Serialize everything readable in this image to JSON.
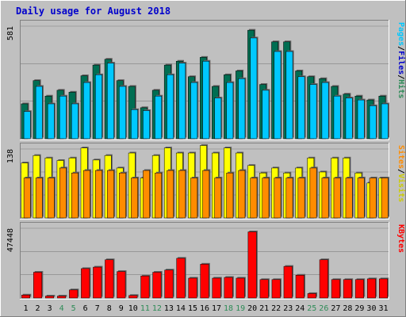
{
  "chart_data": {
    "type": "bar",
    "title": "Daily usage for August 2018",
    "categories": [
      "1",
      "2",
      "3",
      "4",
      "5",
      "6",
      "7",
      "8",
      "9",
      "10",
      "11",
      "12",
      "13",
      "14",
      "15",
      "16",
      "17",
      "18",
      "19",
      "20",
      "21",
      "22",
      "23",
      "24",
      "25",
      "26",
      "27",
      "28",
      "29",
      "30",
      "31"
    ],
    "weekend_days": [
      "4",
      "5",
      "11",
      "12",
      "18",
      "19",
      "25",
      "26"
    ],
    "colors": {
      "title": "#0000cc",
      "weekday_label": "#000000",
      "weekend_label": "#2e8b57",
      "hits": "#006e52",
      "files": "#00c8ff",
      "visits": "#ffff00",
      "sites": "#ff8c00",
      "kbytes": "#ff0000",
      "background": "#c0c0c0"
    },
    "panels": [
      {
        "name": "hits_files",
        "max_label": "581",
        "ymax": 581,
        "legend": [
          {
            "text": "Pages",
            "color": "#00c8ff"
          },
          {
            "text": "/",
            "color": "#000000"
          },
          {
            "text": "Files",
            "color": "#0000cc"
          },
          {
            "text": "/",
            "color": "#000000"
          },
          {
            "text": "Hits",
            "color": "#2e8b57"
          }
        ],
        "series": [
          {
            "name": "Hits",
            "color": "#006e52",
            "values": [
              180,
              300,
              220,
              250,
              240,
              325,
              380,
              410,
              300,
              270,
              160,
              250,
              380,
              400,
              320,
              420,
              270,
              330,
              350,
              560,
              280,
              500,
              500,
              350,
              320,
              310,
              270,
              230,
              220,
              200,
              220
            ]
          },
          {
            "name": "Files",
            "color": "#00c8ff",
            "values": [
              140,
              270,
              180,
              220,
              180,
              290,
              330,
              390,
              270,
              150,
              145,
              220,
              330,
              390,
              290,
              400,
              210,
              290,
              310,
              520,
              250,
              450,
              450,
              320,
              280,
              290,
              220,
              210,
              200,
              170,
              180
            ]
          }
        ]
      },
      {
        "name": "visits_sites",
        "max_label": "138",
        "ymax": 138,
        "legend": [
          {
            "text": "Sites",
            "color": "#ff8c00"
          },
          {
            "text": "/",
            "color": "#000000"
          },
          {
            "text": "Visits",
            "color": "#cccc00"
          }
        ],
        "series": [
          {
            "name": "Visits",
            "color": "#ffff00",
            "values": [
              110,
              125,
              120,
              115,
              120,
              140,
              116,
              125,
              100,
              130,
              80,
              125,
              140,
              130,
              130,
              145,
              130,
              140,
              130,
              105,
              90,
              100,
              90,
              100,
              120,
              92,
              120,
              120,
              90,
              70,
              80
            ]
          },
          {
            "name": "Sites",
            "color": "#ff8c00",
            "values": [
              80,
              80,
              80,
              100,
              90,
              95,
              95,
              95,
              90,
              80,
              95,
              90,
              95,
              95,
              80,
              95,
              80,
              90,
              95,
              80,
              80,
              80,
              80,
              80,
              100,
              80,
              80,
              80,
              80,
              80,
              80
            ]
          }
        ]
      },
      {
        "name": "kbytes",
        "max_label": "47448",
        "ymax": 47448,
        "legend": [
          {
            "text": "KBytes",
            "color": "#ff0000"
          }
        ],
        "series": [
          {
            "name": "KBytes",
            "color": "#ff0000",
            "values": [
              2000,
              17500,
              1300,
              1300,
              5500,
              20000,
              21000,
              26000,
              18000,
              1700,
              15000,
              17500,
              19000,
              27000,
              13500,
              23000,
              13500,
              14000,
              13500,
              45000,
              12500,
              12500,
              21500,
              15500,
              3000,
              26000,
              12500,
              12500,
              12500,
              13000,
              13000
            ]
          }
        ]
      }
    ]
  }
}
